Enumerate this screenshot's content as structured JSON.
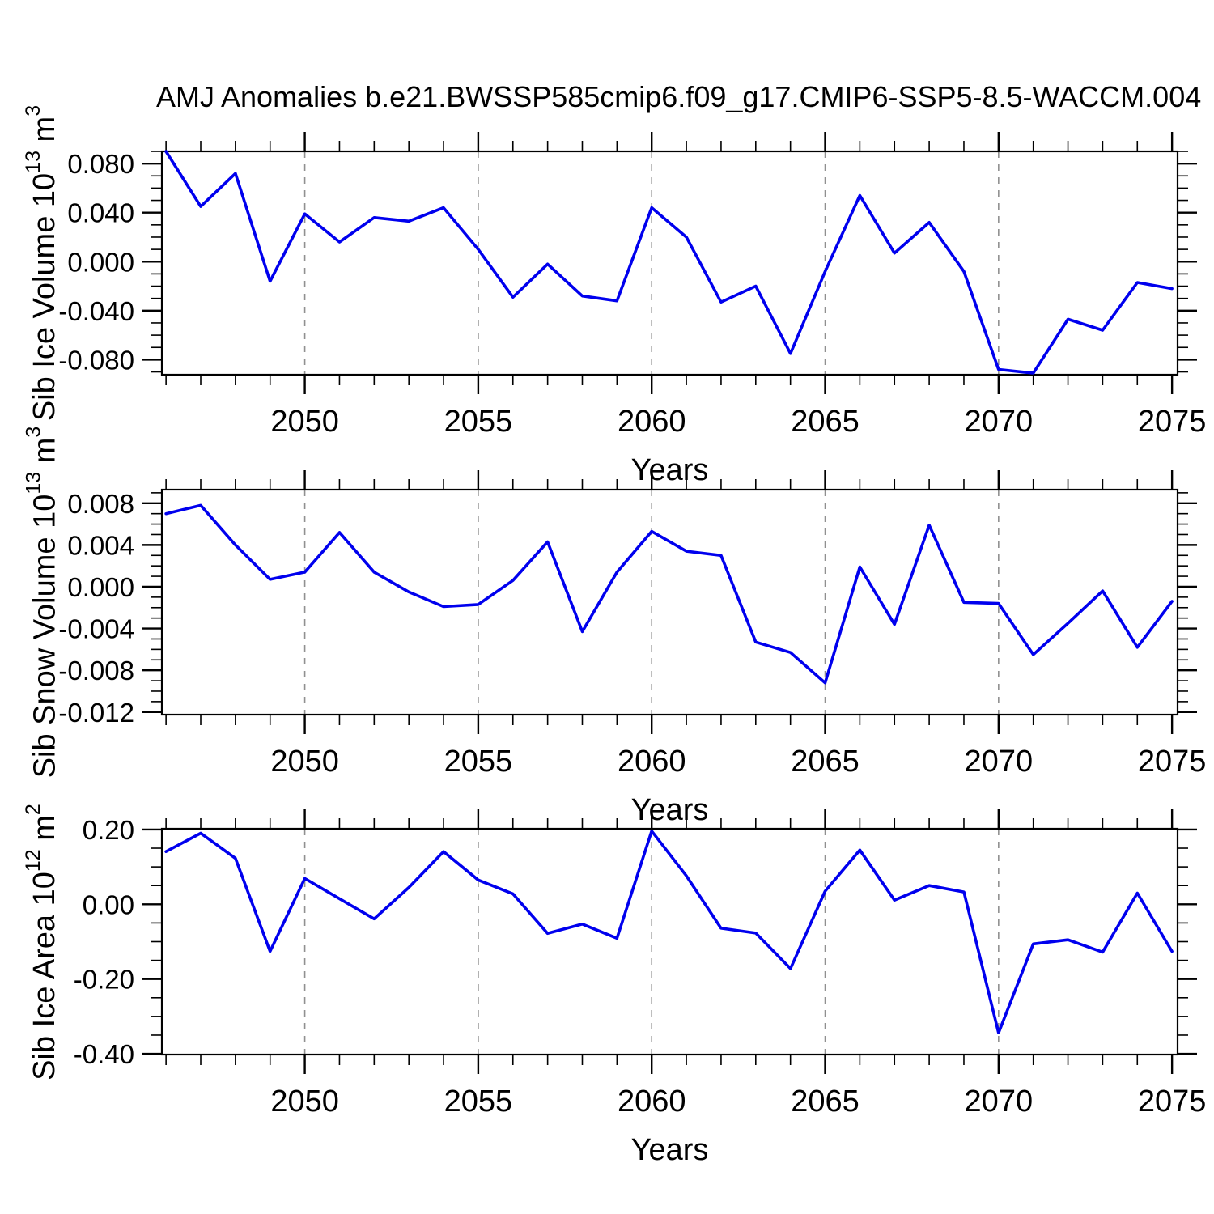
{
  "title": "AMJ Anomalies b.e21.BWSSP585cmip6.f09_g17.CMIP6-SSP5-8.5-WACCM.004",
  "colors": {
    "line": "#0000EE",
    "axis": "#000000",
    "grid": "#909090",
    "text": "#000000"
  },
  "chart_data": [
    {
      "type": "line",
      "name": "sib-ice-volume",
      "xlabel": "Years",
      "ylabel": {
        "prefix": "Sib Ice Volume 10",
        "sup1": "13",
        "mid": " m",
        "sup2": "3"
      },
      "x": [
        2046,
        2047,
        2048,
        2049,
        2050,
        2051,
        2052,
        2053,
        2054,
        2055,
        2056,
        2057,
        2058,
        2059,
        2060,
        2061,
        2062,
        2063,
        2064,
        2065,
        2066,
        2067,
        2068,
        2069,
        2070,
        2071,
        2072,
        2073,
        2074,
        2075
      ],
      "values": [
        0.09,
        0.045,
        0.072,
        -0.016,
        0.039,
        0.016,
        0.036,
        0.033,
        0.044,
        0.01,
        -0.029,
        -0.002,
        -0.028,
        -0.032,
        0.044,
        0.02,
        -0.033,
        -0.02,
        -0.075,
        -0.008,
        0.054,
        0.007,
        0.032,
        -0.008,
        -0.088,
        -0.091,
        -0.047,
        -0.056,
        -0.017,
        -0.022
      ],
      "xlim": [
        2045.88,
        2075.16
      ],
      "ylim": [
        -0.0923,
        0.09
      ],
      "xticks": [
        2050,
        2055,
        2060,
        2065,
        2070,
        2075
      ],
      "xtick_labels": [
        "2050",
        "2055",
        "2060",
        "2065",
        "2070",
        "2075"
      ],
      "xminor_step": 1,
      "grid_x": [
        2050,
        2055,
        2060,
        2065,
        2070
      ],
      "yticks": [
        0.08,
        0.04,
        0.0,
        -0.04,
        -0.08
      ],
      "ytick_labels": [
        "0.080",
        "0.040",
        "0.000",
        "-0.040",
        "-0.080"
      ],
      "yminor_step": 0.01,
      "grid_on": "x-dashed-only"
    },
    {
      "type": "line",
      "name": "sib-snow-volume",
      "xlabel": "Years",
      "ylabel": {
        "prefix": "Sib Snow Volume 10",
        "sup1": "13",
        "mid": " m",
        "sup2": "3"
      },
      "x": [
        2046,
        2047,
        2048,
        2049,
        2050,
        2051,
        2052,
        2053,
        2054,
        2055,
        2056,
        2057,
        2058,
        2059,
        2060,
        2061,
        2062,
        2063,
        2064,
        2065,
        2066,
        2067,
        2068,
        2069,
        2070,
        2071,
        2072,
        2073,
        2074,
        2075
      ],
      "values": [
        0.007,
        0.0078,
        0.004,
        0.0007,
        0.0014,
        0.0052,
        0.0014,
        -0.0005,
        -0.0019,
        -0.0017,
        0.0006,
        0.0043,
        -0.0043,
        0.0014,
        0.0053,
        0.0034,
        0.003,
        -0.0053,
        -0.0063,
        -0.0092,
        0.0019,
        -0.0036,
        0.0059,
        -0.0015,
        -0.0016,
        -0.0065,
        -0.0035,
        -0.0004,
        -0.0058,
        -0.0014
      ],
      "xlim": [
        2045.88,
        2075.16
      ],
      "ylim": [
        -0.01225,
        0.0093
      ],
      "xticks": [
        2050,
        2055,
        2060,
        2065,
        2070,
        2075
      ],
      "xtick_labels": [
        "2050",
        "2055",
        "2060",
        "2065",
        "2070",
        "2075"
      ],
      "xminor_step": 1,
      "grid_x": [
        2050,
        2055,
        2060,
        2065,
        2070
      ],
      "yticks": [
        0.008,
        0.004,
        0.0,
        -0.004,
        -0.008,
        -0.012
      ],
      "ytick_labels": [
        "0.008",
        "0.004",
        "0.000",
        "-0.004",
        "-0.008",
        "-0.012"
      ],
      "yminor_step": 0.001,
      "grid_on": "x-dashed-only"
    },
    {
      "type": "line",
      "name": "sib-ice-area",
      "xlabel": "Years",
      "ylabel": {
        "prefix": "Sib Ice Area 10",
        "sup1": "12",
        "mid": " m",
        "sup2": "2"
      },
      "x": [
        2046,
        2047,
        2048,
        2049,
        2050,
        2051,
        2052,
        2053,
        2054,
        2055,
        2056,
        2057,
        2058,
        2059,
        2060,
        2061,
        2062,
        2063,
        2064,
        2065,
        2066,
        2067,
        2068,
        2069,
        2070,
        2071,
        2072,
        2073,
        2074,
        2075
      ],
      "values": [
        0.141,
        0.19,
        0.123,
        -0.126,
        0.069,
        0.015,
        -0.039,
        0.045,
        0.141,
        0.065,
        0.028,
        -0.078,
        -0.053,
        -0.091,
        0.196,
        0.076,
        -0.064,
        -0.077,
        -0.172,
        0.035,
        0.145,
        0.011,
        0.05,
        0.033,
        -0.344,
        -0.106,
        -0.095,
        -0.128,
        0.03,
        -0.126
      ],
      "xlim": [
        2045.88,
        2075.16
      ],
      "ylim": [
        -0.402,
        0.202
      ],
      "xticks": [
        2050,
        2055,
        2060,
        2065,
        2070,
        2075
      ],
      "xtick_labels": [
        "2050",
        "2055",
        "2060",
        "2065",
        "2070",
        "2075"
      ],
      "xminor_step": 1,
      "grid_x": [
        2050,
        2055,
        2060,
        2065,
        2070
      ],
      "yticks": [
        0.2,
        0.0,
        -0.2,
        -0.4
      ],
      "ytick_labels": [
        "0.20",
        "0.00",
        "-0.20",
        "-0.40"
      ],
      "yminor_step": 0.05,
      "grid_on": "x-dashed-only"
    }
  ]
}
